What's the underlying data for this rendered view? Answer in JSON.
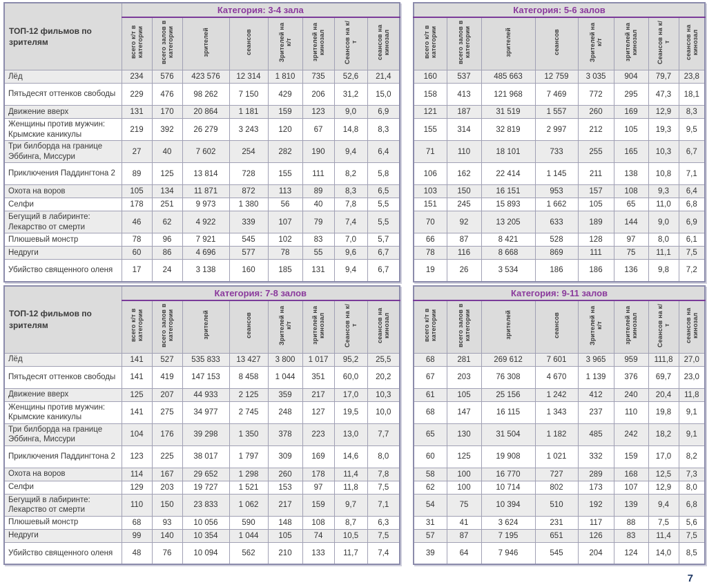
{
  "page": {
    "number": "7"
  },
  "row_header_title": "ТОП-12 фильмов по зрителям",
  "films": [
    "Лёд",
    "Пятьдесят оттенков свободы",
    "Движение вверх",
    "Женщины против мужчин: Крымские каникулы",
    "Три билборда на границе Эббинга, Миссури",
    "Приключения Паддингтона 2",
    "Охота на воров",
    "Селфи",
    "Бегущий в лабиринте: Лекарство от смерти",
    "Плюшевый монстр",
    "Недруги",
    "Убийство священного оленя"
  ],
  "columns": [
    "всего к/т в категории",
    "всего залов в категории",
    "зрителей",
    "сеансов",
    "Зрителей на к/т",
    "зрителей на кинозал",
    "Сеансов на к/т",
    "сеансов на кинозал"
  ],
  "tables": [
    {
      "title": "Категория: 3-4 зала",
      "rows": [
        [
          "234",
          "576",
          "423 576",
          "12 314",
          "1 810",
          "735",
          "52,6",
          "21,4"
        ],
        [
          "229",
          "476",
          "98 262",
          "7 150",
          "429",
          "206",
          "31,2",
          "15,0"
        ],
        [
          "131",
          "170",
          "20 864",
          "1 181",
          "159",
          "123",
          "9,0",
          "6,9"
        ],
        [
          "219",
          "392",
          "26 279",
          "3 243",
          "120",
          "67",
          "14,8",
          "8,3"
        ],
        [
          "27",
          "40",
          "7 602",
          "254",
          "282",
          "190",
          "9,4",
          "6,4"
        ],
        [
          "89",
          "125",
          "13 814",
          "728",
          "155",
          "111",
          "8,2",
          "5,8"
        ],
        [
          "105",
          "134",
          "11 871",
          "872",
          "113",
          "89",
          "8,3",
          "6,5"
        ],
        [
          "178",
          "251",
          "9 973",
          "1 380",
          "56",
          "40",
          "7,8",
          "5,5"
        ],
        [
          "46",
          "62",
          "4 922",
          "339",
          "107",
          "79",
          "7,4",
          "5,5"
        ],
        [
          "78",
          "96",
          "7 921",
          "545",
          "102",
          "83",
          "7,0",
          "5,7"
        ],
        [
          "60",
          "86",
          "4 696",
          "577",
          "78",
          "55",
          "9,6",
          "6,7"
        ],
        [
          "17",
          "24",
          "3 138",
          "160",
          "185",
          "131",
          "9,4",
          "6,7"
        ]
      ]
    },
    {
      "title": "Категория: 5-6 залов",
      "rows": [
        [
          "160",
          "537",
          "485 663",
          "12 759",
          "3 035",
          "904",
          "79,7",
          "23,8"
        ],
        [
          "158",
          "413",
          "121 968",
          "7 469",
          "772",
          "295",
          "47,3",
          "18,1"
        ],
        [
          "121",
          "187",
          "31 519",
          "1 557",
          "260",
          "169",
          "12,9",
          "8,3"
        ],
        [
          "155",
          "314",
          "32 819",
          "2 997",
          "212",
          "105",
          "19,3",
          "9,5"
        ],
        [
          "71",
          "110",
          "18 101",
          "733",
          "255",
          "165",
          "10,3",
          "6,7"
        ],
        [
          "106",
          "162",
          "22 414",
          "1 145",
          "211",
          "138",
          "10,8",
          "7,1"
        ],
        [
          "103",
          "150",
          "16 151",
          "953",
          "157",
          "108",
          "9,3",
          "6,4"
        ],
        [
          "151",
          "245",
          "15 893",
          "1 662",
          "105",
          "65",
          "11,0",
          "6,8"
        ],
        [
          "70",
          "92",
          "13 205",
          "633",
          "189",
          "144",
          "9,0",
          "6,9"
        ],
        [
          "66",
          "87",
          "8 421",
          "528",
          "128",
          "97",
          "8,0",
          "6,1"
        ],
        [
          "78",
          "116",
          "8 668",
          "869",
          "111",
          "75",
          "11,1",
          "7,5"
        ],
        [
          "19",
          "26",
          "3 534",
          "186",
          "186",
          "136",
          "9,8",
          "7,2"
        ]
      ]
    },
    {
      "title": "Категория: 7-8 залов",
      "rows": [
        [
          "141",
          "527",
          "535 833",
          "13 427",
          "3 800",
          "1 017",
          "95,2",
          "25,5"
        ],
        [
          "141",
          "419",
          "147 153",
          "8 458",
          "1 044",
          "351",
          "60,0",
          "20,2"
        ],
        [
          "125",
          "207",
          "44 933",
          "2 125",
          "359",
          "217",
          "17,0",
          "10,3"
        ],
        [
          "141",
          "275",
          "34 977",
          "2 745",
          "248",
          "127",
          "19,5",
          "10,0"
        ],
        [
          "104",
          "176",
          "39 298",
          "1 350",
          "378",
          "223",
          "13,0",
          "7,7"
        ],
        [
          "123",
          "225",
          "38 017",
          "1 797",
          "309",
          "169",
          "14,6",
          "8,0"
        ],
        [
          "114",
          "167",
          "29 652",
          "1 298",
          "260",
          "178",
          "11,4",
          "7,8"
        ],
        [
          "129",
          "203",
          "19 727",
          "1 521",
          "153",
          "97",
          "11,8",
          "7,5"
        ],
        [
          "110",
          "150",
          "23 833",
          "1 062",
          "217",
          "159",
          "9,7",
          "7,1"
        ],
        [
          "68",
          "93",
          "10 056",
          "590",
          "148",
          "108",
          "8,7",
          "6,3"
        ],
        [
          "99",
          "140",
          "10 354",
          "1 044",
          "105",
          "74",
          "10,5",
          "7,5"
        ],
        [
          "48",
          "76",
          "10 094",
          "562",
          "210",
          "133",
          "11,7",
          "7,4"
        ]
      ]
    },
    {
      "title": "Категория: 9-11 залов",
      "rows": [
        [
          "68",
          "281",
          "269 612",
          "7 601",
          "3 965",
          "959",
          "111,8",
          "27,0"
        ],
        [
          "67",
          "203",
          "76 308",
          "4 670",
          "1 139",
          "376",
          "69,7",
          "23,0"
        ],
        [
          "61",
          "105",
          "25 156",
          "1 242",
          "412",
          "240",
          "20,4",
          "11,8"
        ],
        [
          "68",
          "147",
          "16 115",
          "1 343",
          "237",
          "110",
          "19,8",
          "9,1"
        ],
        [
          "65",
          "130",
          "31 504",
          "1 182",
          "485",
          "242",
          "18,2",
          "9,1"
        ],
        [
          "60",
          "125",
          "19 908",
          "1 021",
          "332",
          "159",
          "17,0",
          "8,2"
        ],
        [
          "58",
          "100",
          "16 770",
          "727",
          "289",
          "168",
          "12,5",
          "7,3"
        ],
        [
          "62",
          "100",
          "10 714",
          "802",
          "173",
          "107",
          "12,9",
          "8,0"
        ],
        [
          "54",
          "75",
          "10 394",
          "510",
          "192",
          "139",
          "9,4",
          "6,8"
        ],
        [
          "31",
          "41",
          "3 624",
          "231",
          "117",
          "88",
          "7,5",
          "5,6"
        ],
        [
          "57",
          "87",
          "7 195",
          "651",
          "126",
          "83",
          "11,4",
          "7,5"
        ],
        [
          "39",
          "64",
          "7 946",
          "545",
          "204",
          "124",
          "14,0",
          "8,5"
        ]
      ]
    }
  ],
  "colors": {
    "accent_purple": "#8a3a9c",
    "title_underline": "#7a3b99",
    "header_bg": "#dcdcdc",
    "row_stripe": "#ececec",
    "table_border": "#8b8bab",
    "page_number": "#1f3864"
  }
}
